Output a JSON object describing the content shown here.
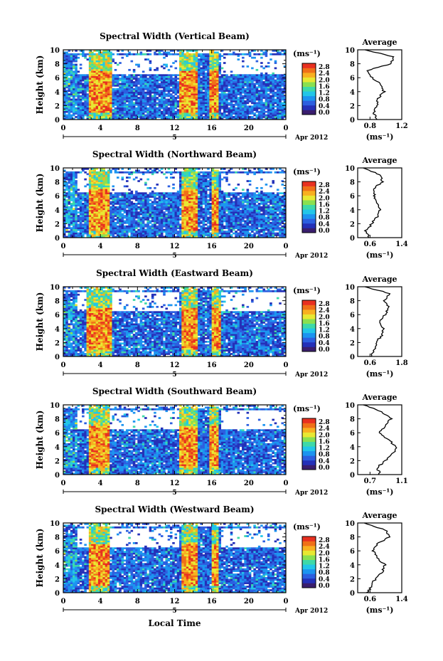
{
  "colorbar": {
    "unit": "(ms⁻¹)",
    "tick_labels": [
      "0.0",
      "0.4",
      "0.8",
      "1.2",
      "1.6",
      "2.0",
      "2.4",
      "2.8"
    ],
    "colors": [
      "#3a1e6e",
      "#2430b8",
      "#2c5fe0",
      "#1c94f0",
      "#22c6e8",
      "#3ed9a8",
      "#8ae050",
      "#e8e832",
      "#f8b020",
      "#f07018",
      "#e83020"
    ]
  },
  "x_axis": {
    "tick_labels": [
      "0",
      "4",
      "8",
      "12",
      "16",
      "20",
      "0"
    ],
    "date_tick_label": "5",
    "date_label": "Apr 2012",
    "xlabel": "Local Time"
  },
  "y_axis": {
    "label": "Height (km)",
    "tick_labels": [
      "0",
      "2",
      "4",
      "6",
      "8",
      "10"
    ]
  },
  "average_panel_title": "Average",
  "average_xlabel": "(ms⁻¹)",
  "chart_data": [
    {
      "type": "heatmap",
      "title": "Spectral Width (Vertical Beam)",
      "xlabel": "",
      "ylabel": "Height (km)",
      "xlim": [
        0,
        24
      ],
      "ylim": [
        0,
        10
      ],
      "colorbar_range": [
        0.0,
        2.8
      ],
      "high_width_bands_local_time_h": [
        [
          2.8,
          5.2
        ],
        [
          12.6,
          14.4
        ],
        [
          15.8,
          16.8
        ]
      ],
      "average_profile": {
        "xlim": [
          0.6,
          1.2
        ],
        "tick_labels": [
          "0.8",
          "1.2"
        ],
        "height_km": [
          0,
          1,
          2,
          3,
          4,
          5,
          6,
          7,
          8,
          9,
          10
        ],
        "width": [
          0.85,
          0.82,
          0.86,
          0.88,
          0.96,
          0.92,
          0.8,
          0.72,
          1.05,
          1.1,
          0.7
        ]
      }
    },
    {
      "type": "heatmap",
      "title": "Spectral Width (Northward Beam)",
      "xlabel": "",
      "ylabel": "Height (km)",
      "xlim": [
        0,
        24
      ],
      "ylim": [
        0,
        10
      ],
      "colorbar_range": [
        0.0,
        2.8
      ],
      "high_width_bands_local_time_h": [
        [
          2.8,
          5.0
        ],
        [
          12.8,
          14.4
        ],
        [
          16.0,
          16.8
        ]
      ],
      "average_profile": {
        "xlim": [
          0.6,
          1.4
        ],
        "tick_labels": [
          "0.6",
          "1.4"
        ],
        "height_km": [
          0,
          1,
          2,
          3,
          4,
          5,
          6,
          7,
          8,
          9,
          10
        ],
        "width": [
          0.8,
          0.75,
          0.86,
          0.95,
          1.0,
          0.95,
          0.9,
          0.88,
          1.05,
          1.0,
          0.7
        ]
      }
    },
    {
      "type": "heatmap",
      "title": "Spectral Width (Eastward Beam)",
      "xlabel": "",
      "ylabel": "Height (km)",
      "xlim": [
        0,
        24
      ],
      "ylim": [
        0,
        10
      ],
      "colorbar_range": [
        0.0,
        2.8
      ],
      "high_width_bands_local_time_h": [
        [
          2.6,
          5.2
        ],
        [
          12.8,
          14.4
        ],
        [
          16.0,
          17.0
        ]
      ],
      "average_profile": {
        "xlim": [
          0.6,
          1.8
        ],
        "tick_labels": [
          "0.6",
          "1.8"
        ],
        "height_km": [
          0,
          1,
          2,
          3,
          4,
          5,
          6,
          7,
          8,
          9,
          10
        ],
        "width": [
          0.95,
          1.05,
          1.1,
          1.25,
          1.3,
          1.2,
          1.35,
          1.45,
          1.3,
          1.5,
          0.8
        ]
      }
    },
    {
      "type": "heatmap",
      "title": "Spectral Width (Southward Beam)",
      "xlabel": "",
      "ylabel": "Height (km)",
      "xlim": [
        0,
        24
      ],
      "ylim": [
        0,
        10
      ],
      "colorbar_range": [
        0.0,
        2.8
      ],
      "high_width_bands_local_time_h": [
        [
          2.8,
          5.0
        ],
        [
          12.6,
          14.6
        ],
        [
          15.8,
          16.8
        ]
      ],
      "average_profile": {
        "xlim": [
          0.7,
          1.1
        ],
        "tick_labels": [
          "0.7",
          "1.1"
        ],
        "height_km": [
          0,
          1,
          2,
          3,
          4,
          5,
          6,
          7,
          8,
          9,
          10
        ],
        "width": [
          0.9,
          0.88,
          0.95,
          1.02,
          1.05,
          0.98,
          0.9,
          0.95,
          1.0,
          0.92,
          0.75
        ]
      }
    },
    {
      "type": "heatmap",
      "title": "Spectral Width (Westward Beam)",
      "xlabel": "Local Time",
      "ylabel": "Height (km)",
      "xlim": [
        0,
        24
      ],
      "ylim": [
        0,
        10
      ],
      "colorbar_range": [
        0.0,
        2.8
      ],
      "high_width_bands_local_time_h": [
        [
          2.8,
          5.0
        ],
        [
          12.8,
          14.4
        ],
        [
          16.0,
          16.8
        ]
      ],
      "average_profile": {
        "xlim": [
          0.6,
          1.4
        ],
        "tick_labels": [
          "0.6",
          "1.4"
        ],
        "height_km": [
          0,
          1,
          2,
          3,
          4,
          5,
          6,
          7,
          8,
          9,
          10
        ],
        "width": [
          0.78,
          0.85,
          0.92,
          1.05,
          1.1,
          0.95,
          0.88,
          0.95,
          1.18,
          1.1,
          0.72
        ]
      }
    }
  ]
}
